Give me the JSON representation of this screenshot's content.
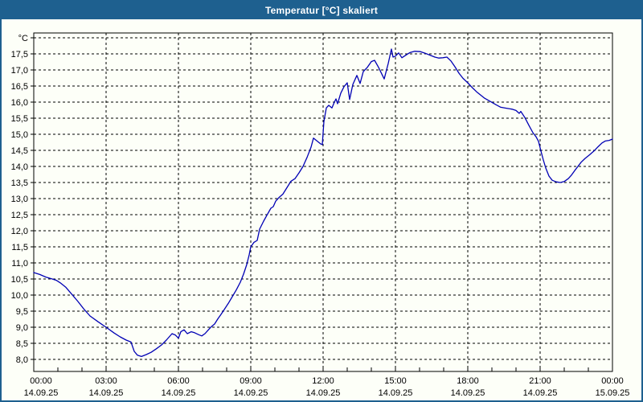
{
  "window": {
    "title": "Temperatur [°C] skaliert"
  },
  "colors": {
    "titlebar": "#1e608f",
    "frame": "#1e608f",
    "background": "#fdfff8",
    "plot_border": "#000000",
    "grid": "#000000",
    "line": "#0000b4",
    "text": "#000000"
  },
  "chart_data": {
    "type": "line",
    "title": "Temperatur [°C] skaliert",
    "ylabel": "°C",
    "y_axis": {
      "unit_label": "°C",
      "min": 8.0,
      "max": 18.0,
      "step": 0.5,
      "tick_labels": [
        "8,0",
        "8,5",
        "9,0",
        "9,5",
        "10,0",
        "10,5",
        "11,0",
        "11,5",
        "12,0",
        "12,5",
        "13,0",
        "13,5",
        "14,0",
        "14,5",
        "15,0",
        "15,5",
        "16,0",
        "16,5",
        "17,0",
        "17,5"
      ],
      "grid": true
    },
    "x_axis": {
      "total_hours": 24,
      "major_step_hours": 3,
      "minor_step_hours": 1,
      "tick_times": [
        "00:00",
        "03:00",
        "06:00",
        "09:00",
        "12:00",
        "15:00",
        "18:00",
        "21:00",
        "00:00"
      ],
      "tick_dates": [
        "14.09.25",
        "14.09.25",
        "14.09.25",
        "14.09.25",
        "14.09.25",
        "14.09.25",
        "14.09.25",
        "14.09.25",
        "15.09.25"
      ],
      "grid": true
    },
    "legend": "none",
    "series": [
      {
        "name": "Temperatur",
        "color": "#0000b4",
        "points_format": "[minutes_since_00:00, temperature_C]",
        "points": [
          [
            0,
            10.7
          ],
          [
            15,
            10.64
          ],
          [
            30,
            10.56
          ],
          [
            46,
            10.5
          ],
          [
            56,
            10.46
          ],
          [
            66,
            10.38
          ],
          [
            80,
            10.24
          ],
          [
            95,
            10.02
          ],
          [
            110,
            9.8
          ],
          [
            125,
            9.56
          ],
          [
            140,
            9.35
          ],
          [
            160,
            9.17
          ],
          [
            180,
            9.0
          ],
          [
            200,
            8.82
          ],
          [
            215,
            8.7
          ],
          [
            230,
            8.6
          ],
          [
            242,
            8.54
          ],
          [
            250,
            8.25
          ],
          [
            258,
            8.13
          ],
          [
            268,
            8.09
          ],
          [
            280,
            8.15
          ],
          [
            292,
            8.22
          ],
          [
            305,
            8.33
          ],
          [
            318,
            8.45
          ],
          [
            330,
            8.6
          ],
          [
            344,
            8.8
          ],
          [
            352,
            8.76
          ],
          [
            360,
            8.66
          ],
          [
            366,
            8.86
          ],
          [
            374,
            8.92
          ],
          [
            382,
            8.8
          ],
          [
            392,
            8.86
          ],
          [
            400,
            8.83
          ],
          [
            410,
            8.77
          ],
          [
            418,
            8.73
          ],
          [
            426,
            8.8
          ],
          [
            434,
            8.91
          ],
          [
            442,
            9.02
          ],
          [
            450,
            9.1
          ],
          [
            458,
            9.26
          ],
          [
            466,
            9.4
          ],
          [
            474,
            9.55
          ],
          [
            484,
            9.74
          ],
          [
            494,
            9.95
          ],
          [
            504,
            10.16
          ],
          [
            514,
            10.4
          ],
          [
            522,
            10.65
          ],
          [
            530,
            10.95
          ],
          [
            536,
            11.25
          ],
          [
            540,
            11.5
          ],
          [
            548,
            11.64
          ],
          [
            556,
            11.7
          ],
          [
            562,
            12.05
          ],
          [
            572,
            12.3
          ],
          [
            580,
            12.48
          ],
          [
            590,
            12.7
          ],
          [
            596,
            12.75
          ],
          [
            602,
            12.92
          ],
          [
            610,
            13.03
          ],
          [
            620,
            13.14
          ],
          [
            630,
            13.34
          ],
          [
            640,
            13.54
          ],
          [
            650,
            13.62
          ],
          [
            660,
            13.8
          ],
          [
            670,
            14.0
          ],
          [
            680,
            14.28
          ],
          [
            690,
            14.6
          ],
          [
            696,
            14.88
          ],
          [
            704,
            14.8
          ],
          [
            714,
            14.7
          ],
          [
            718,
            14.68
          ],
          [
            722,
            15.4
          ],
          [
            728,
            15.82
          ],
          [
            734,
            15.9
          ],
          [
            742,
            15.82
          ],
          [
            748,
            16.0
          ],
          [
            752,
            16.1
          ],
          [
            756,
            15.95
          ],
          [
            764,
            16.28
          ],
          [
            772,
            16.48
          ],
          [
            780,
            16.6
          ],
          [
            786,
            16.08
          ],
          [
            794,
            16.55
          ],
          [
            804,
            16.83
          ],
          [
            812,
            16.58
          ],
          [
            820,
            16.95
          ],
          [
            830,
            17.08
          ],
          [
            840,
            17.26
          ],
          [
            848,
            17.3
          ],
          [
            858,
            17.08
          ],
          [
            872,
            16.72
          ],
          [
            882,
            17.2
          ],
          [
            890,
            17.65
          ],
          [
            894,
            17.4
          ],
          [
            900,
            17.43
          ],
          [
            908,
            17.53
          ],
          [
            916,
            17.38
          ],
          [
            926,
            17.46
          ],
          [
            936,
            17.54
          ],
          [
            948,
            17.58
          ],
          [
            962,
            17.57
          ],
          [
            974,
            17.52
          ],
          [
            986,
            17.46
          ],
          [
            998,
            17.4
          ],
          [
            1008,
            17.37
          ],
          [
            1018,
            17.38
          ],
          [
            1028,
            17.4
          ],
          [
            1038,
            17.28
          ],
          [
            1048,
            17.1
          ],
          [
            1058,
            16.9
          ],
          [
            1068,
            16.74
          ],
          [
            1080,
            16.6
          ],
          [
            1092,
            16.44
          ],
          [
            1102,
            16.32
          ],
          [
            1112,
            16.22
          ],
          [
            1122,
            16.12
          ],
          [
            1136,
            16.02
          ],
          [
            1150,
            15.92
          ],
          [
            1162,
            15.84
          ],
          [
            1176,
            15.81
          ],
          [
            1190,
            15.78
          ],
          [
            1200,
            15.74
          ],
          [
            1208,
            15.65
          ],
          [
            1212,
            15.71
          ],
          [
            1222,
            15.52
          ],
          [
            1232,
            15.28
          ],
          [
            1242,
            15.05
          ],
          [
            1250,
            14.92
          ],
          [
            1256,
            14.78
          ],
          [
            1262,
            14.48
          ],
          [
            1268,
            14.2
          ],
          [
            1274,
            13.95
          ],
          [
            1282,
            13.7
          ],
          [
            1290,
            13.57
          ],
          [
            1300,
            13.52
          ],
          [
            1310,
            13.5
          ],
          [
            1320,
            13.53
          ],
          [
            1330,
            13.62
          ],
          [
            1338,
            13.73
          ],
          [
            1346,
            13.87
          ],
          [
            1354,
            14.0
          ],
          [
            1362,
            14.13
          ],
          [
            1372,
            14.25
          ],
          [
            1382,
            14.35
          ],
          [
            1394,
            14.48
          ],
          [
            1404,
            14.61
          ],
          [
            1414,
            14.73
          ],
          [
            1422,
            14.79
          ],
          [
            1432,
            14.81
          ],
          [
            1440,
            14.85
          ]
        ]
      }
    ]
  }
}
